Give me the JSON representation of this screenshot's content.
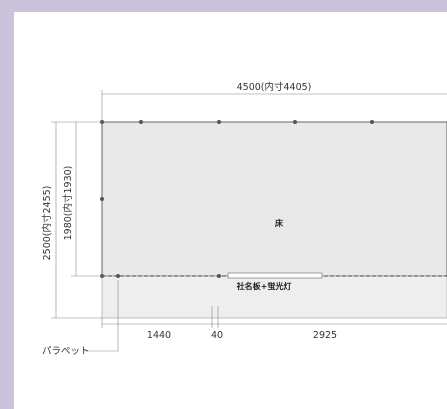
{
  "drawing": {
    "top_dimension": "4500(内寸4405)",
    "outer_height": "2500(内寸2455)",
    "inner_height": "1980(内寸1930)",
    "floor_label": "床",
    "sign_label": "社名板+蛍光灯",
    "parapet_label": "パラペット",
    "bottom_segments": [
      "1440",
      "40",
      "2925"
    ]
  },
  "colors": {
    "frame_border": "#cbc3dc",
    "floor_fill": "#e9e9e9",
    "parapet_fill": "#eeeeee",
    "line": "#555555"
  }
}
